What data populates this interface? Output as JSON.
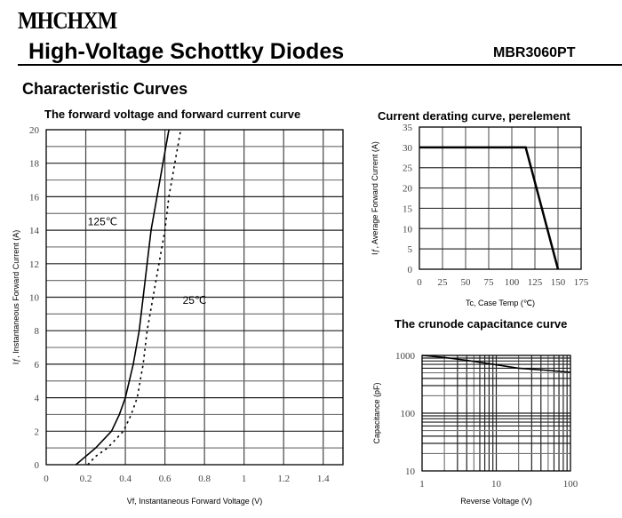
{
  "header": {
    "logo": "MHCHXM",
    "title": "High-Voltage Schottky Diodes",
    "part_number": "MBR3060PT"
  },
  "section_title": "Characteristic Curves",
  "chart_data": [
    {
      "type": "line",
      "title": "The forward voltage and forward current curve",
      "xlabel": "Vf, Instantaneous Forward Voltage (V)",
      "ylabel": "Iƒ, Instantaneous Forward Current (A)",
      "xlim": [
        0,
        1.5
      ],
      "ylim": [
        0,
        20
      ],
      "grid": true,
      "xticks": [
        "0",
        "0.2",
        "0.4",
        "0.6",
        "0.8",
        "1",
        "1.2",
        "1.4"
      ],
      "xtick_values": [
        0,
        0.2,
        0.4,
        0.6,
        0.8,
        1,
        1.2,
        1.4
      ],
      "yticks": [
        "0",
        "2",
        "4",
        "6",
        "8",
        "10",
        "12",
        "14",
        "16",
        "18",
        "20"
      ],
      "series": [
        {
          "name": "125℃",
          "style": "solid",
          "x": [
            0.15,
            0.2,
            0.25,
            0.33,
            0.37,
            0.4,
            0.44,
            0.47,
            0.49,
            0.51,
            0.53,
            0.56,
            0.59,
            0.62
          ],
          "y": [
            0,
            0.5,
            1,
            2,
            3,
            4,
            6,
            8,
            10,
            12,
            14,
            16,
            18,
            20
          ]
        },
        {
          "name": "25℃",
          "style": "dotted",
          "x": [
            0.21,
            0.25,
            0.31,
            0.39,
            0.43,
            0.46,
            0.49,
            0.51,
            0.54,
            0.57,
            0.6,
            0.62,
            0.65,
            0.68
          ],
          "y": [
            0,
            0.5,
            1,
            2,
            3,
            4,
            6,
            8,
            10,
            12,
            14,
            16,
            18,
            20
          ]
        }
      ],
      "annotations": [
        {
          "text": "125℃",
          "x": 0.21,
          "y": 14.3
        },
        {
          "text": "25℃",
          "x": 0.69,
          "y": 9.6
        }
      ]
    },
    {
      "type": "line",
      "title": "Current derating curve, perelement",
      "xlabel": "Tc, Case Temp (℃)",
      "ylabel": "Iƒ, Average Forward Current (A)",
      "xlim": [
        0,
        175
      ],
      "ylim": [
        0,
        35
      ],
      "grid": true,
      "xticks": [
        "0",
        "25",
        "50",
        "75",
        "100",
        "125",
        "150",
        "175"
      ],
      "xtick_values": [
        0,
        25,
        50,
        75,
        100,
        125,
        150,
        175
      ],
      "yticks": [
        "0",
        "5",
        "10",
        "15",
        "20",
        "25",
        "30",
        "35"
      ],
      "series": [
        {
          "x": [
            0,
            115,
            150
          ],
          "y": [
            30,
            30,
            0
          ]
        }
      ]
    },
    {
      "type": "line",
      "title": "The crunode capacitance curve",
      "xlabel": "Reverse Voltage (V)",
      "ylabel": "Capacitance (pF)",
      "xscale": "log",
      "yscale": "log",
      "xlim": [
        1,
        100
      ],
      "ylim": [
        10,
        1000
      ],
      "grid": true,
      "xticks": [
        "1",
        "10",
        "100"
      ],
      "yticks": [
        "10",
        "100",
        "1000"
      ],
      "series": [
        {
          "x": [
            1,
            2,
            4,
            8,
            20,
            50,
            100
          ],
          "y": [
            1000,
            920,
            820,
            720,
            600,
            550,
            510
          ]
        }
      ]
    }
  ]
}
